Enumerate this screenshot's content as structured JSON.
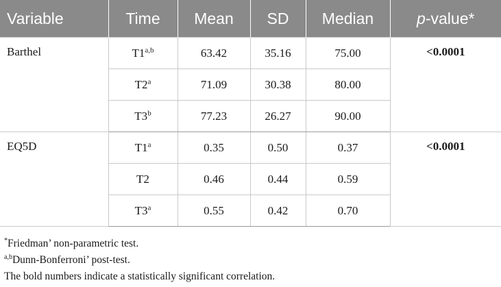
{
  "table": {
    "headers": {
      "variable": "Variable",
      "time": "Time",
      "mean": "Mean",
      "sd": "SD",
      "median": "Median",
      "pvalue_p": "p",
      "pvalue_rest": "-value*"
    },
    "groups": [
      {
        "variable": "Barthel",
        "pvalue": "<0.0001",
        "rows": [
          {
            "time": "T1",
            "sup": "a,b",
            "mean": "63.42",
            "sd": "35.16",
            "median": "75.00"
          },
          {
            "time": "T2",
            "sup": "a",
            "mean": "71.09",
            "sd": "30.38",
            "median": "80.00"
          },
          {
            "time": "T3",
            "sup": "b",
            "mean": "77.23",
            "sd": "26.27",
            "median": "90.00"
          }
        ]
      },
      {
        "variable": "EQ5D",
        "pvalue": "<0.0001",
        "rows": [
          {
            "time": "T1",
            "sup": "a",
            "mean": "0.35",
            "sd": "0.50",
            "median": "0.37"
          },
          {
            "time": "T2",
            "sup": "",
            "mean": "0.46",
            "sd": "0.44",
            "median": "0.59"
          },
          {
            "time": "T3",
            "sup": "a",
            "mean": "0.55",
            "sd": "0.42",
            "median": "0.70"
          }
        ]
      }
    ]
  },
  "notes": {
    "note1_mark": "*",
    "note1_text": "Friedman’ non-parametric test.",
    "note2_mark": "a,b",
    "note2_text": "Dunn-Bonferroni’ post-test.",
    "note3_text": "The bold numbers indicate a statistically significant correlation."
  },
  "colors": {
    "header_bg": "#8a8a8a",
    "header_text": "#ffffff",
    "grid_line": "#c9c9c9"
  }
}
